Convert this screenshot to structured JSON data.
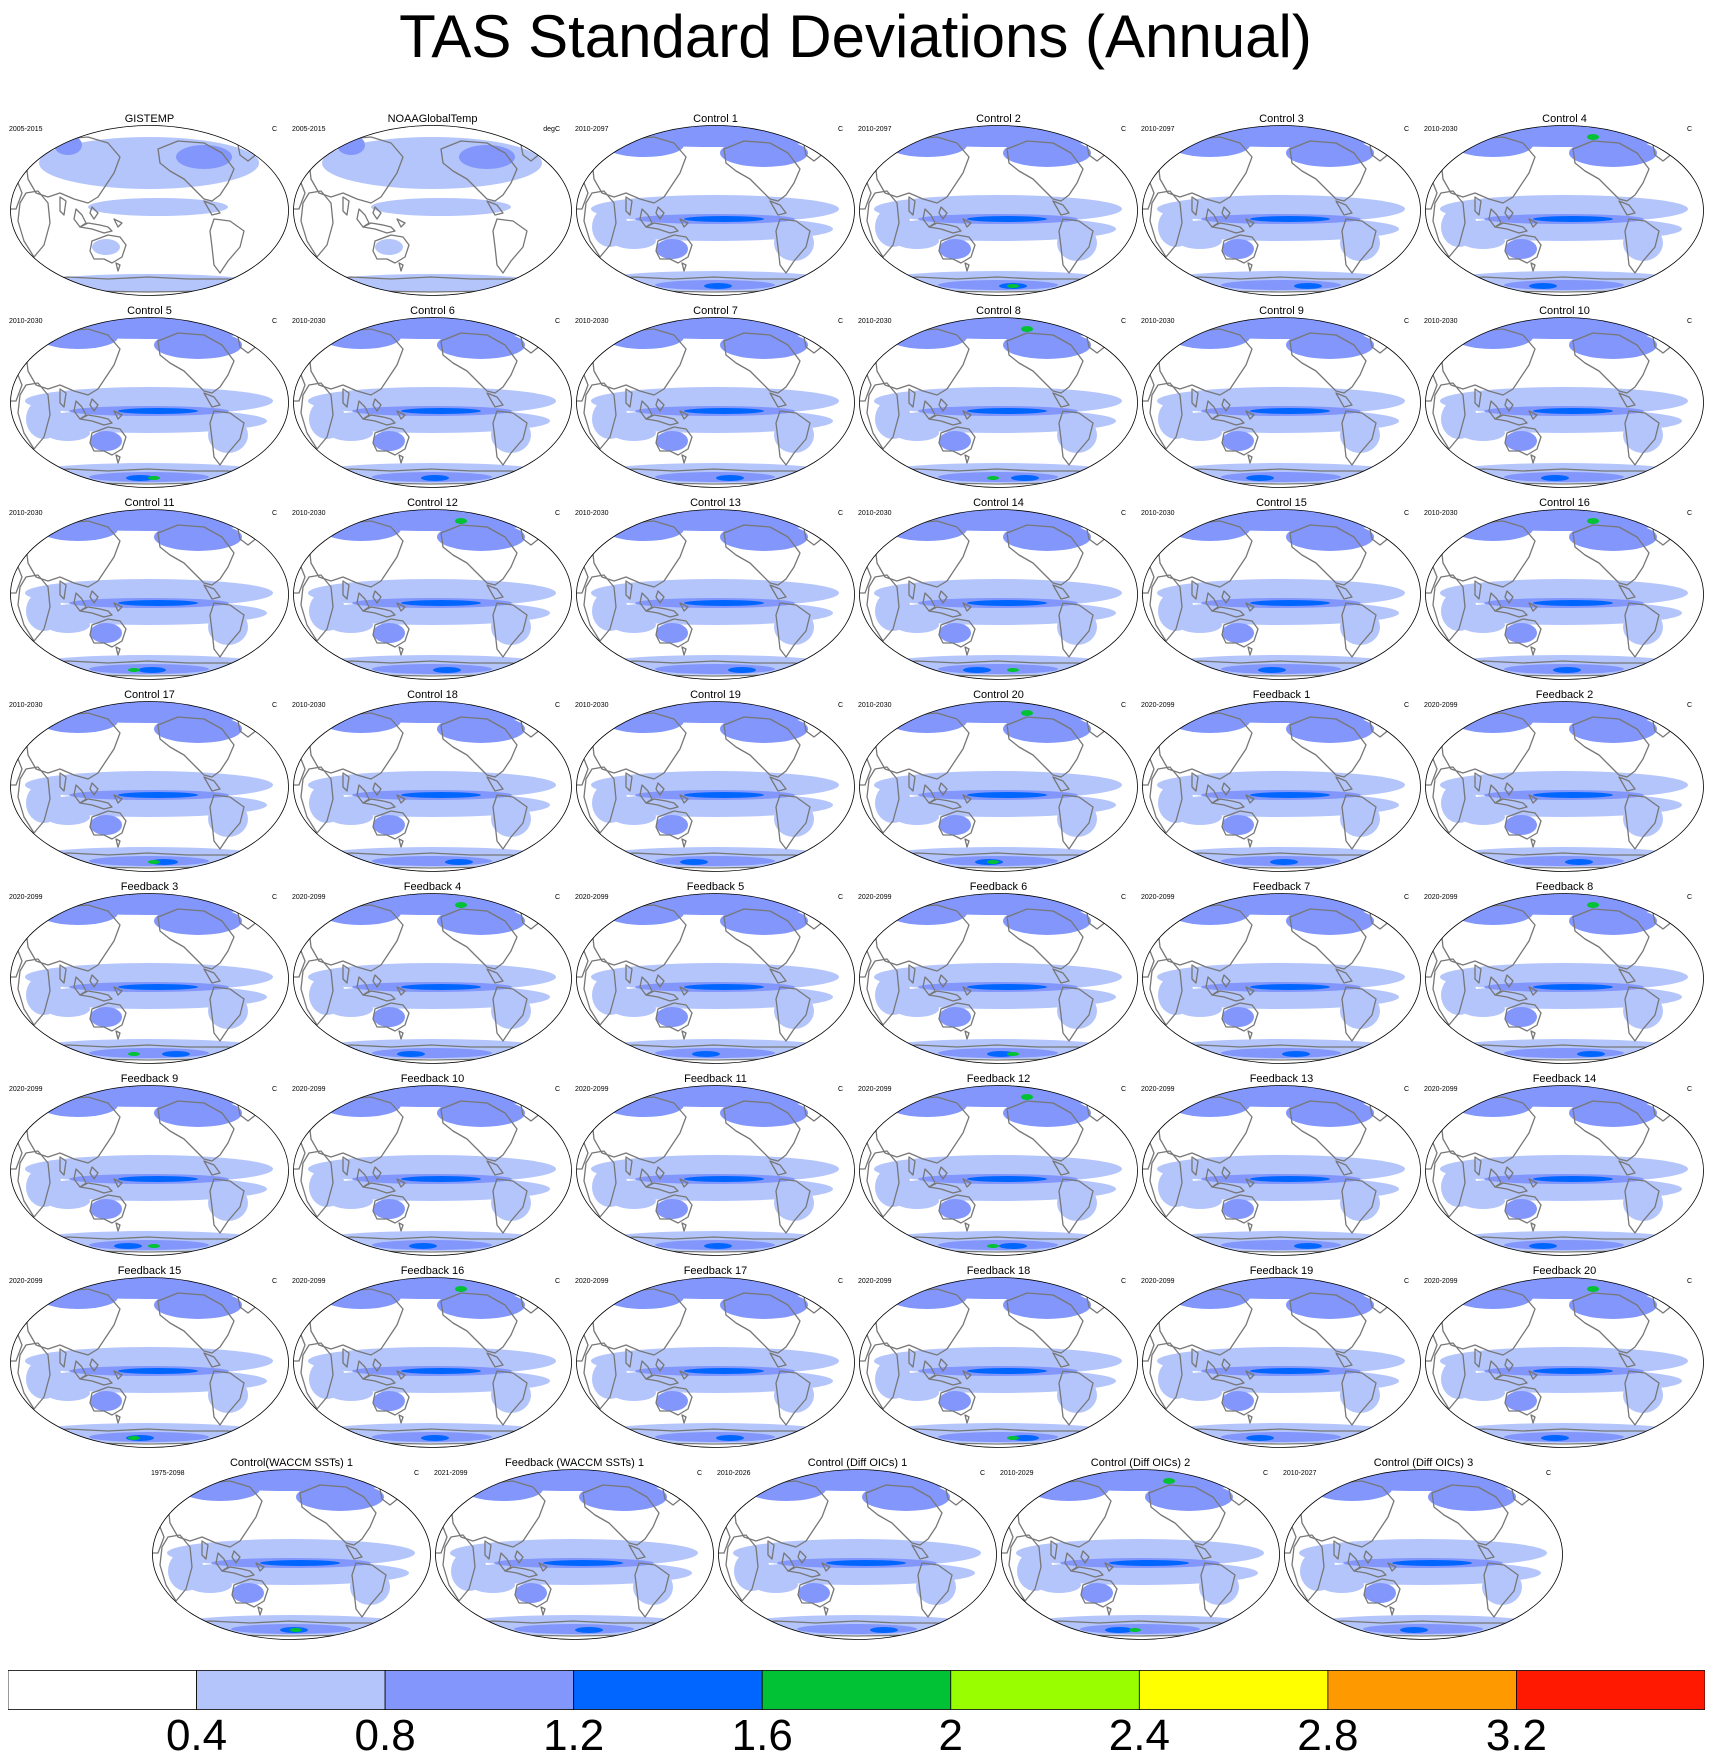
{
  "title": "TAS Standard Deviations (Annual)",
  "colorbar": {
    "labels": [
      "0.4",
      "0.8",
      "1.2",
      "1.6",
      "2",
      "2.4",
      "2.8",
      "3.2"
    ],
    "colors": [
      "#ffffff",
      "#b4c5fb",
      "#8296fb",
      "#0066ff",
      "#00c234",
      "#99ff00",
      "#ffff00",
      "#ff9900",
      "#ff1900"
    ]
  },
  "panels": [
    {
      "title": "GISTEMP",
      "period": "2005-2015",
      "units": "C",
      "obs": true
    },
    {
      "title": "NOAAGlobalTemp",
      "period": "2005-2015",
      "units": "degC",
      "obs": true
    },
    {
      "title": "Control 1",
      "period": "2010-2097",
      "units": "C"
    },
    {
      "title": "Control 2",
      "period": "2010-2097",
      "units": "C"
    },
    {
      "title": "Control 3",
      "period": "2010-2097",
      "units": "C"
    },
    {
      "title": "Control 4",
      "period": "2010-2030",
      "units": "C"
    },
    {
      "title": "Control 5",
      "period": "2010-2030",
      "units": "C"
    },
    {
      "title": "Control 6",
      "period": "2010-2030",
      "units": "C"
    },
    {
      "title": "Control 7",
      "period": "2010-2030",
      "units": "C"
    },
    {
      "title": "Control 8",
      "period": "2010-2030",
      "units": "C"
    },
    {
      "title": "Control 9",
      "period": "2010-2030",
      "units": "C"
    },
    {
      "title": "Control 10",
      "period": "2010-2030",
      "units": "C"
    },
    {
      "title": "Control 11",
      "period": "2010-2030",
      "units": "C"
    },
    {
      "title": "Control 12",
      "period": "2010-2030",
      "units": "C"
    },
    {
      "title": "Control 13",
      "period": "2010-2030",
      "units": "C"
    },
    {
      "title": "Control 14",
      "period": "2010-2030",
      "units": "C"
    },
    {
      "title": "Control 15",
      "period": "2010-2030",
      "units": "C"
    },
    {
      "title": "Control 16",
      "period": "2010-2030",
      "units": "C"
    },
    {
      "title": "Control 17",
      "period": "2010-2030",
      "units": "C"
    },
    {
      "title": "Control 18",
      "period": "2010-2030",
      "units": "C"
    },
    {
      "title": "Control 19",
      "period": "2010-2030",
      "units": "C"
    },
    {
      "title": "Control 20",
      "period": "2010-2030",
      "units": "C"
    },
    {
      "title": "Feedback 1",
      "period": "2020-2099",
      "units": "C"
    },
    {
      "title": "Feedback 2",
      "period": "2020-2099",
      "units": "C"
    },
    {
      "title": "Feedback 3",
      "period": "2020-2099",
      "units": "C"
    },
    {
      "title": "Feedback 4",
      "period": "2020-2099",
      "units": "C"
    },
    {
      "title": "Feedback 5",
      "period": "2020-2099",
      "units": "C"
    },
    {
      "title": "Feedback 6",
      "period": "2020-2099",
      "units": "C"
    },
    {
      "title": "Feedback 7",
      "period": "2020-2099",
      "units": "C"
    },
    {
      "title": "Feedback 8",
      "period": "2020-2099",
      "units": "C"
    },
    {
      "title": "Feedback 9",
      "period": "2020-2099",
      "units": "C"
    },
    {
      "title": "Feedback 10",
      "period": "2020-2099",
      "units": "C"
    },
    {
      "title": "Feedback 11",
      "period": "2020-2099",
      "units": "C"
    },
    {
      "title": "Feedback 12",
      "period": "2020-2099",
      "units": "C"
    },
    {
      "title": "Feedback 13",
      "period": "2020-2099",
      "units": "C"
    },
    {
      "title": "Feedback 14",
      "period": "2020-2099",
      "units": "C"
    },
    {
      "title": "Feedback 15",
      "period": "2020-2099",
      "units": "C"
    },
    {
      "title": "Feedback 16",
      "period": "2020-2099",
      "units": "C"
    },
    {
      "title": "Feedback 17",
      "period": "2020-2099",
      "units": "C"
    },
    {
      "title": "Feedback 18",
      "period": "2020-2099",
      "units": "C"
    },
    {
      "title": "Feedback 19",
      "period": "2020-2099",
      "units": "C"
    },
    {
      "title": "Feedback 20",
      "period": "2020-2099",
      "units": "C"
    },
    {
      "title": "Control(WACCM SSTs) 1",
      "period": "1975-2098",
      "units": "C"
    },
    {
      "title": "Feedback (WACCM SSTs) 1",
      "period": "2021-2099",
      "units": "C"
    },
    {
      "title": "Control (Diff OICs) 1",
      "period": "2010-2026",
      "units": "C"
    },
    {
      "title": "Control (Diff OICs) 2",
      "period": "2010-2029",
      "units": "C"
    },
    {
      "title": "Control (Diff OICs) 3",
      "period": "2010-2027",
      "units": "C"
    }
  ]
}
